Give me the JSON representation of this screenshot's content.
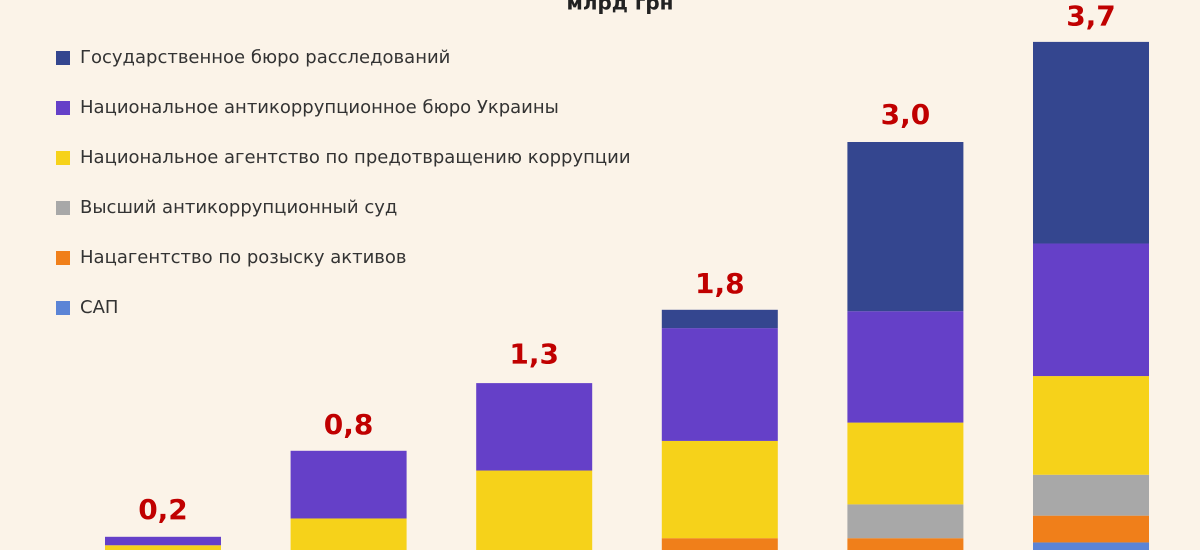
{
  "chart_data": {
    "type": "stacked-bar",
    "title": "млрд грн",
    "series": [
      {
        "name": "САП",
        "color": "#5b84d6",
        "values": [
          0,
          0,
          0,
          0,
          0,
          0.16
        ]
      },
      {
        "name": "Нацагентство по розыску активов",
        "color": "#f07f1a",
        "values": [
          0,
          0,
          0,
          0.19,
          0.19,
          0.19
        ]
      },
      {
        "name": "Высший антикоррупционный суд",
        "color": "#a8a8a8",
        "values": [
          0,
          0,
          0,
          0,
          0.24,
          0.29
        ]
      },
      {
        "name": "Национальное агентство по предотвращению коррупции",
        "color": "#f6d21a",
        "values": [
          0.14,
          0.33,
          0.67,
          0.69,
          0.58,
          0.7
        ]
      },
      {
        "name": "Национальное антикоррупционное бюро Украины",
        "color": "#6540c8",
        "values": [
          0.06,
          0.48,
          0.62,
          0.8,
          0.79,
          0.94
        ]
      },
      {
        "name": "Государственное бюро расследований",
        "color": "#34468f",
        "values": [
          0,
          0,
          0,
          0.13,
          1.2,
          1.43
        ]
      }
    ],
    "totals": [
      0.2,
      0.8,
      1.3,
      1.8,
      3.0,
      3.7
    ],
    "total_labels": [
      "0,2",
      "0,8",
      "1,3",
      "1,8",
      "3,0",
      "3,7"
    ],
    "total_label_color": "#c00000"
  }
}
